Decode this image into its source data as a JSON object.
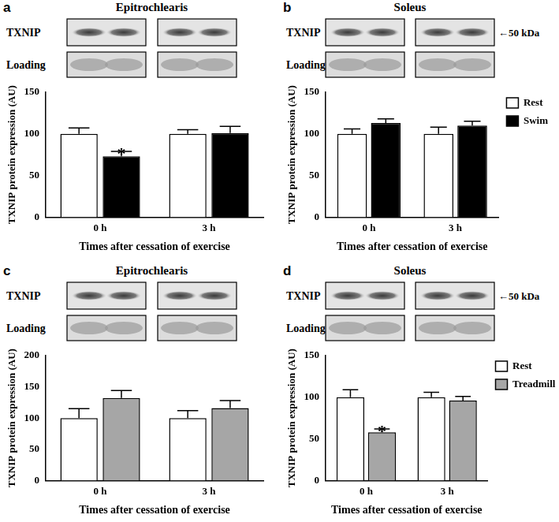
{
  "chart_data": [
    {
      "type": "bar",
      "panel_label": "a",
      "title": "Epitrochlearis",
      "blot": {
        "rows": [
          "TXNIP",
          "Loading"
        ]
      },
      "categories": [
        "0 h",
        "3 h"
      ],
      "series": [
        {
          "name": "Rest",
          "color": "#ffffff",
          "values": [
            100,
            100
          ],
          "errors": [
            7,
            5
          ]
        },
        {
          "name": "Swim",
          "color": "#000000",
          "values": [
            73,
            101
          ],
          "errors": [
            6,
            8
          ]
        }
      ],
      "x_label": "Times after cessation of exercise",
      "y_label": "TXNIP protein expression (AU)",
      "ylim": [
        0,
        150
      ],
      "yticks": [
        0,
        50,
        100,
        150
      ],
      "grid": false,
      "annotations": [
        {
          "text": "*",
          "series": "Swim",
          "category": "0 h"
        }
      ]
    },
    {
      "type": "bar",
      "panel_label": "b",
      "title": "Soleus",
      "blot": {
        "rows": [
          "TXNIP",
          "Loading"
        ],
        "size_marker": "←50 kDa"
      },
      "categories": [
        "0 h",
        "3 h"
      ],
      "series": [
        {
          "name": "Rest",
          "color": "#ffffff",
          "values": [
            100,
            100
          ],
          "errors": [
            6,
            8
          ]
        },
        {
          "name": "Swim",
          "color": "#000000",
          "values": [
            113,
            110
          ],
          "errors": [
            5,
            5
          ]
        }
      ],
      "x_label": "Times after cessation of exercise",
      "y_label": "TXNIP protein expression (AU)",
      "ylim": [
        0,
        150
      ],
      "yticks": [
        0,
        50,
        100,
        150
      ],
      "grid": false,
      "legend": "right"
    },
    {
      "type": "bar",
      "panel_label": "c",
      "title": "Epitrochlearis",
      "blot": {
        "rows": [
          "TXNIP",
          "Loading"
        ]
      },
      "categories": [
        "0 h",
        "3 h"
      ],
      "series": [
        {
          "name": "Rest",
          "color": "#ffffff",
          "values": [
            100,
            100
          ],
          "errors": [
            15,
            12
          ]
        },
        {
          "name": "Treadmill",
          "color": "#a6a6a6",
          "values": [
            132,
            116
          ],
          "errors": [
            12,
            12
          ]
        }
      ],
      "x_label": "Times after cessation of exercise",
      "y_label": "TXNIP protein expression (AU)",
      "ylim": [
        0,
        200
      ],
      "yticks": [
        0,
        50,
        100,
        150,
        200
      ],
      "grid": false
    },
    {
      "type": "bar",
      "panel_label": "d",
      "title": "Soleus",
      "blot": {
        "rows": [
          "TXNIP",
          "Loading"
        ],
        "size_marker": "←50 kDa"
      },
      "categories": [
        "0 h",
        "3 h"
      ],
      "series": [
        {
          "name": "Rest",
          "color": "#ffffff",
          "values": [
            100,
            100
          ],
          "errors": [
            9,
            6
          ]
        },
        {
          "name": "Treadmill",
          "color": "#a6a6a6",
          "values": [
            58,
            96
          ],
          "errors": [
            4,
            5
          ]
        }
      ],
      "x_label": "Times after cessation of exercise",
      "y_label": "TXNIP protein expression (AU)",
      "ylim": [
        0,
        150
      ],
      "yticks": [
        0,
        50,
        100,
        150
      ],
      "grid": false,
      "legend": "right",
      "annotations": [
        {
          "text": "*",
          "series": "Treadmill",
          "category": "0 h"
        }
      ]
    }
  ]
}
